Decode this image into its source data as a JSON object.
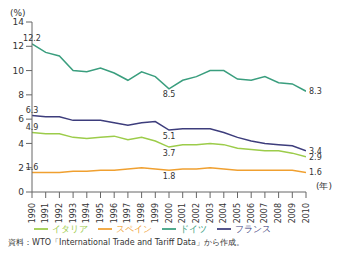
{
  "chart_data": {
    "type": "line",
    "y_label": "(%)",
    "x_label": "(年)",
    "source": "資料：WTO「International Trade and Tariff Data」から作成。",
    "x": [
      1990,
      1991,
      1992,
      1993,
      1994,
      1995,
      1996,
      1997,
      1998,
      1999,
      2000,
      2001,
      2002,
      2003,
      2004,
      2005,
      2006,
      2007,
      2008,
      2009,
      2010
    ],
    "series": [
      {
        "name": "フランス",
        "color": "#3d3d7c",
        "values": [
          6.3,
          6.2,
          6.2,
          5.9,
          5.9,
          5.9,
          5.7,
          5.5,
          5.7,
          5.8,
          5.1,
          5.2,
          5.2,
          5.2,
          4.9,
          4.5,
          4.2,
          4.0,
          3.9,
          3.8,
          3.4
        ]
      },
      {
        "name": "ドイツ",
        "color": "#3a9e7e",
        "values": [
          12.2,
          11.5,
          11.2,
          10.0,
          9.9,
          10.2,
          9.8,
          9.2,
          9.9,
          9.5,
          8.5,
          9.2,
          9.5,
          10.0,
          10.0,
          9.3,
          9.2,
          9.5,
          9.0,
          8.9,
          8.3
        ]
      },
      {
        "name": "イタリア",
        "color": "#9ccc4a",
        "values": [
          4.9,
          4.8,
          4.8,
          4.5,
          4.4,
          4.5,
          4.6,
          4.3,
          4.5,
          4.2,
          3.7,
          3.9,
          3.9,
          4.0,
          3.9,
          3.6,
          3.5,
          3.4,
          3.4,
          3.2,
          2.9
        ]
      },
      {
        "name": "スペイン",
        "color": "#f0a030",
        "values": [
          1.6,
          1.6,
          1.6,
          1.7,
          1.7,
          1.8,
          1.8,
          1.9,
          2.0,
          1.9,
          1.8,
          1.9,
          1.9,
          2.0,
          1.9,
          1.8,
          1.8,
          1.8,
          1.8,
          1.8,
          1.6
        ]
      }
    ],
    "annotations": [
      {
        "x": 1990,
        "y": 12.2
      },
      {
        "x": 1990,
        "y": 6.3
      },
      {
        "x": 1990,
        "y": 4.9
      },
      {
        "x": 1990,
        "y": 1.6
      },
      {
        "x": 2000,
        "y": 8.5
      },
      {
        "x": 2000,
        "y": 5.1
      },
      {
        "x": 2000,
        "y": 3.7
      },
      {
        "x": 2000,
        "y": 1.8
      },
      {
        "x": 2010,
        "y": 8.3
      },
      {
        "x": 2010,
        "y": 3.4
      },
      {
        "x": 2010,
        "y": 2.9
      },
      {
        "x": 2010,
        "y": 1.6
      }
    ],
    "xlim": [
      1990,
      2010
    ],
    "xticks": [
      1990,
      1991,
      1992,
      1993,
      1994,
      1995,
      1996,
      1997,
      1998,
      1999,
      2000,
      2001,
      2002,
      2003,
      2004,
      2005,
      2006,
      2007,
      2008,
      2009,
      2010
    ],
    "ylim": [
      0,
      14
    ],
    "yticks": [
      0,
      2,
      4,
      6,
      8,
      10,
      12,
      14
    ],
    "grid": false,
    "legend": "bottom"
  }
}
